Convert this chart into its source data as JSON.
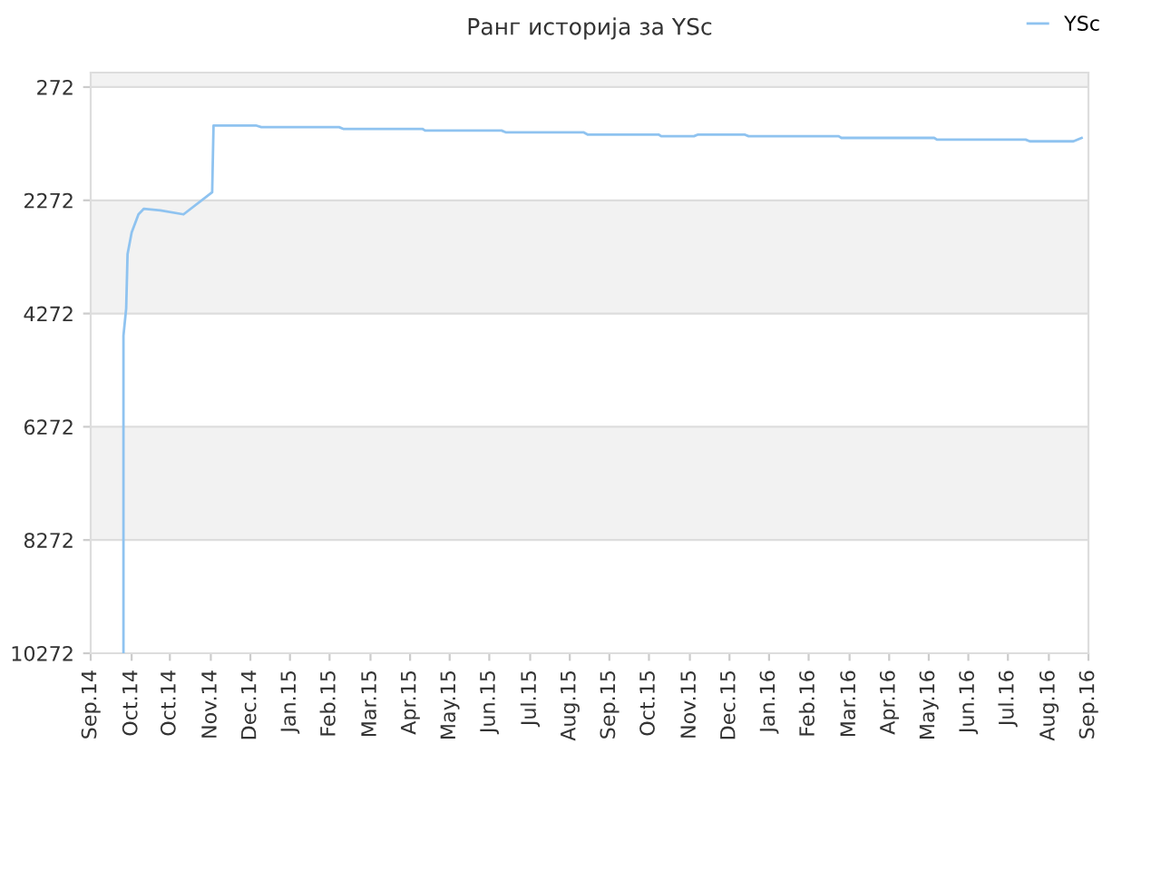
{
  "chart_data": {
    "type": "line",
    "title": "Ранг историја за YSc",
    "legend": "top right",
    "grid": "y",
    "line_style": "solid",
    "marker": "none",
    "xlim": [
      "2014-09-01",
      "2016-09-01"
    ],
    "ylim": [
      10272,
      16
    ],
    "xticks": [
      {
        "value": "2014-09-01",
        "label": "Sep.14"
      },
      {
        "value": "2014-10-01",
        "label": "Oct.14"
      },
      {
        "value": "2014-10-29",
        "label": "Oct.14"
      },
      {
        "value": "2014-11-28",
        "label": "Nov.14"
      },
      {
        "value": "2014-12-27",
        "label": "Dec.14"
      },
      {
        "value": "2015-01-25",
        "label": "Jan.15"
      },
      {
        "value": "2015-02-23",
        "label": "Feb.15"
      },
      {
        "value": "2015-03-25",
        "label": "Mar.15"
      },
      {
        "value": "2015-04-23",
        "label": "Apr.15"
      },
      {
        "value": "2015-05-22",
        "label": "May.15"
      },
      {
        "value": "2015-06-20",
        "label": "Jun.15"
      },
      {
        "value": "2015-07-20",
        "label": "Jul.15"
      },
      {
        "value": "2015-08-18",
        "label": "Aug.15"
      },
      {
        "value": "2015-09-16",
        "label": "Sep.15"
      },
      {
        "value": "2015-10-15",
        "label": "Oct.15"
      },
      {
        "value": "2015-11-14",
        "label": "Nov.15"
      },
      {
        "value": "2015-12-13",
        "label": "Dec.15"
      },
      {
        "value": "2016-01-11",
        "label": "Jan.16"
      },
      {
        "value": "2016-02-09",
        "label": "Feb.16"
      },
      {
        "value": "2016-03-10",
        "label": "Mar.16"
      },
      {
        "value": "2016-04-08",
        "label": "Apr.16"
      },
      {
        "value": "2016-05-07",
        "label": "May.16"
      },
      {
        "value": "2016-06-05",
        "label": "Jun.16"
      },
      {
        "value": "2016-07-04",
        "label": "Jul.16"
      },
      {
        "value": "2016-08-03",
        "label": "Aug.16"
      },
      {
        "value": "2016-09-01",
        "label": "Sep.16"
      }
    ],
    "yticks": [
      272,
      2272,
      4272,
      6272,
      8272,
      10272
    ],
    "bands": [
      {
        "axis": "y",
        "from": 16,
        "to": 272,
        "color": "#f2f2f2"
      },
      {
        "axis": "y",
        "from": 2272,
        "to": 4272,
        "color": "#f2f2f2"
      },
      {
        "axis": "y",
        "from": 6272,
        "to": 8272,
        "color": "#f2f2f2"
      }
    ],
    "x": [
      "2014-09-25",
      "2014-09-25",
      "2014-09-27",
      "2014-09-28",
      "2014-10-01",
      "2014-10-06",
      "2014-10-10",
      "2014-10-22",
      "2014-11-08",
      "2014-11-29",
      "2014-11-30",
      "2014-12-31",
      "2015-01-04",
      "2015-03-02",
      "2015-03-05",
      "2015-05-02",
      "2015-05-04",
      "2015-06-29",
      "2015-07-02",
      "2015-08-28",
      "2015-08-31",
      "2015-10-22",
      "2015-10-24",
      "2015-11-17",
      "2015-11-20",
      "2015-12-24",
      "2015-12-27",
      "2016-03-02",
      "2016-03-04",
      "2016-05-11",
      "2016-05-13",
      "2016-07-17",
      "2016-07-20",
      "2016-08-21",
      "2016-08-27"
    ],
    "series": [
      {
        "name": "YSc",
        "color": "#8fc3f0",
        "values": [
          10272,
          4660,
          4180,
          3220,
          2840,
          2520,
          2420,
          2450,
          2520,
          2130,
          950,
          950,
          980,
          980,
          1010,
          1010,
          1040,
          1040,
          1070,
          1070,
          1110,
          1110,
          1140,
          1140,
          1110,
          1110,
          1140,
          1140,
          1170,
          1170,
          1200,
          1200,
          1230,
          1230,
          1170
        ]
      }
    ]
  }
}
